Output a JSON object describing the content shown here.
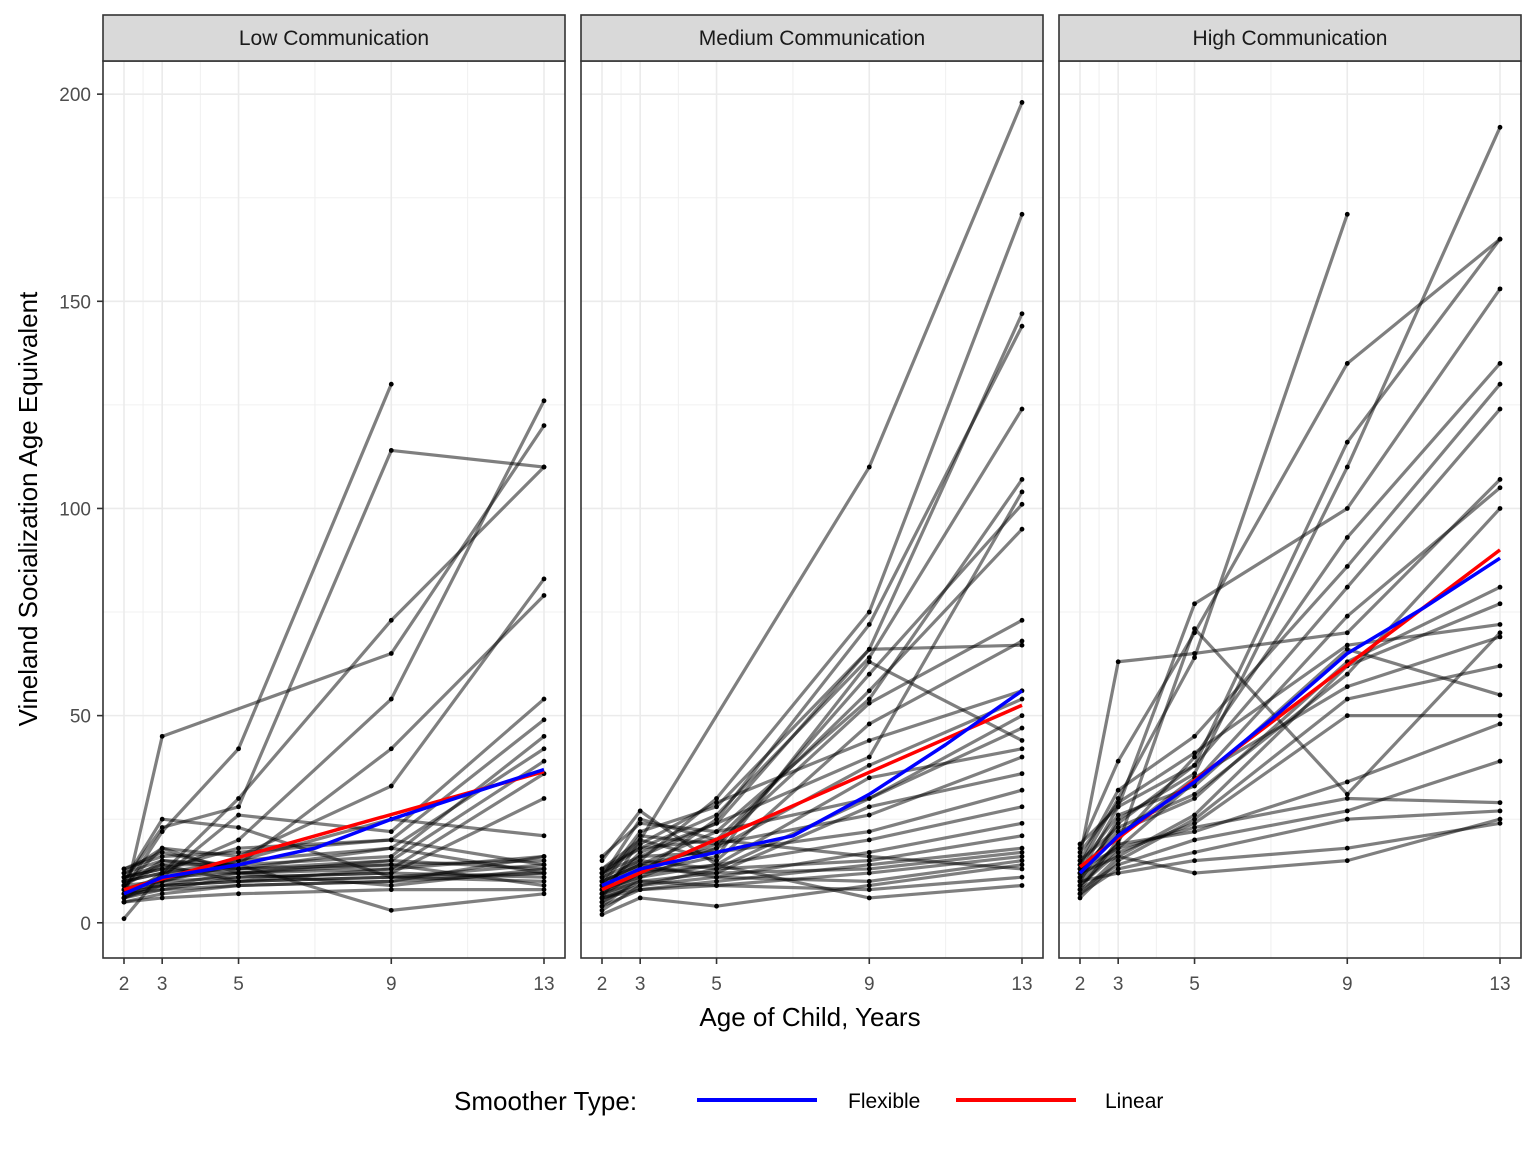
{
  "chart_data": {
    "type": "line",
    "ylabel": "Vineland Socialization Age Equivalent",
    "xlabel": "Age of Child, Years",
    "x_ticks": [
      2,
      3,
      5,
      9,
      13
    ],
    "y_ticks": [
      0,
      50,
      100,
      150,
      200
    ],
    "xlim": [
      1.45,
      13.55
    ],
    "ylim": [
      -8.5,
      208
    ],
    "grid": true,
    "legend": {
      "title": "Smoother Type:",
      "placement": "bottom",
      "items": [
        {
          "label": "Flexible",
          "color": "#0000ff"
        },
        {
          "label": "Linear",
          "color": "#ff0000"
        }
      ]
    },
    "colors": {
      "individual": "#000000",
      "flexible": "#0000ff",
      "linear": "#ff0000",
      "strip_bg": "#d9d9d9"
    },
    "panels": [
      {
        "title": "Low Communication",
        "flexible": {
          "x": [
            2,
            3,
            5,
            7,
            9,
            11,
            13
          ],
          "y": [
            7,
            11,
            14,
            18,
            25,
            31,
            37
          ]
        },
        "linear": {
          "x": [
            2,
            13
          ],
          "y": [
            8,
            36.5
          ]
        },
        "subjects": [
          [
            1,
            12,
            30,
            73,
            110
          ],
          [
            5,
            45,
            null,
            65,
            120
          ],
          [
            8,
            22,
            42,
            130,
            null
          ],
          [
            10,
            23,
            28,
            114,
            110
          ],
          [
            6,
            12,
            20,
            54,
            126
          ],
          [
            9,
            15,
            14,
            42,
            79
          ],
          [
            12,
            18,
            16,
            33,
            83
          ],
          [
            7,
            11,
            26,
            22,
            54
          ],
          [
            11,
            13,
            18,
            20,
            49
          ],
          [
            8,
            10,
            14,
            16,
            45
          ],
          [
            13,
            17,
            13,
            18,
            42
          ],
          [
            6,
            9,
            12,
            15,
            39
          ],
          [
            9,
            14,
            10,
            13,
            36
          ],
          [
            7,
            8,
            11,
            12,
            30
          ],
          [
            10,
            12,
            15,
            25,
            21
          ],
          [
            5,
            7,
            9,
            10,
            16
          ],
          [
            11,
            13,
            12,
            14,
            15
          ],
          [
            8,
            9,
            10,
            11,
            14
          ],
          [
            12,
            15,
            13,
            15,
            13
          ],
          [
            6,
            8,
            9,
            10,
            12
          ],
          [
            9,
            10,
            11,
            12,
            11
          ],
          [
            7,
            9,
            10,
            11,
            10
          ],
          [
            10,
            12,
            13,
            14,
            9
          ],
          [
            5,
            6,
            7,
            8,
            8
          ],
          [
            11,
            14,
            14,
            3,
            7
          ],
          [
            8,
            11,
            12,
            9,
            13
          ],
          [
            13,
            16,
            17,
            20,
            14
          ],
          [
            6,
            10,
            15,
            18,
            12
          ],
          [
            9,
            18,
            12,
            13,
            16
          ],
          [
            10,
            25,
            23,
            11,
            12
          ]
        ]
      },
      {
        "title": "Medium Communication",
        "flexible": {
          "x": [
            2,
            3,
            5,
            7,
            9,
            11,
            13
          ],
          "y": [
            9,
            13,
            17,
            21,
            31,
            43,
            56
          ]
        },
        "linear": {
          "x": [
            2,
            13
          ],
          "y": [
            8,
            52.5
          ]
        },
        "subjects": [
          [
            6,
            20,
            null,
            110,
            198
          ],
          [
            8,
            15,
            30,
            75,
            171
          ],
          [
            10,
            22,
            28,
            66,
            147
          ],
          [
            5,
            12,
            25,
            72,
            144
          ],
          [
            12,
            18,
            26,
            64,
            124
          ],
          [
            7,
            14,
            22,
            54,
            107
          ],
          [
            9,
            16,
            24,
            40,
            104
          ],
          [
            4,
            11,
            18,
            60,
            101
          ],
          [
            11,
            25,
            20,
            56,
            95
          ],
          [
            6,
            13,
            19,
            53,
            73
          ],
          [
            13,
            20,
            15,
            48,
            68
          ],
          [
            8,
            17,
            24,
            66,
            67
          ],
          [
            10,
            14,
            18,
            38,
            54
          ],
          [
            3,
            9,
            13,
            30,
            50
          ],
          [
            7,
            12,
            16,
            63,
            44
          ],
          [
            15,
            27,
            14,
            35,
            42
          ],
          [
            9,
            21,
            19,
            26,
            40
          ],
          [
            5,
            10,
            12,
            28,
            36
          ],
          [
            12,
            16,
            17,
            22,
            32
          ],
          [
            8,
            11,
            14,
            20,
            28
          ],
          [
            6,
            9,
            11,
            17,
            24
          ],
          [
            11,
            15,
            13,
            15,
            21
          ],
          [
            4,
            8,
            10,
            14,
            18
          ],
          [
            9,
            13,
            12,
            13,
            17
          ],
          [
            7,
            10,
            9,
            12,
            16
          ],
          [
            10,
            14,
            11,
            10,
            15
          ],
          [
            2,
            6,
            4,
            9,
            14
          ],
          [
            13,
            18,
            20,
            16,
            13
          ],
          [
            6,
            8,
            9,
            8,
            11
          ],
          [
            8,
            12,
            14,
            6,
            9
          ],
          [
            16,
            24,
            22,
            30,
            47
          ],
          [
            12,
            19,
            29,
            44,
            56
          ]
        ]
      },
      {
        "title": "High Communication",
        "flexible": {
          "x": [
            2,
            3,
            5,
            7,
            9,
            11,
            13
          ],
          "y": [
            12,
            21,
            34,
            49,
            65,
            76,
            88
          ]
        },
        "linear": {
          "x": [
            2,
            13
          ],
          "y": [
            13.5,
            90
          ]
        },
        "subjects": [
          [
            14,
            30,
            64,
            171,
            null
          ],
          [
            10,
            25,
            36,
            110,
            192
          ],
          [
            18,
            39,
            70,
            135,
            165
          ],
          [
            12,
            28,
            77,
            100,
            153
          ],
          [
            8,
            20,
            40,
            93,
            135
          ],
          [
            15,
            32,
            45,
            86,
            130
          ],
          [
            11,
            24,
            38,
            81,
            124
          ],
          [
            16,
            63,
            65,
            70,
            107
          ],
          [
            9,
            18,
            34,
            74,
            105
          ],
          [
            13,
            22,
            30,
            63,
            81
          ],
          [
            7,
            16,
            26,
            62,
            77
          ],
          [
            17,
            29,
            41,
            67,
            72
          ],
          [
            10,
            19,
            71,
            31,
            70
          ],
          [
            12,
            21,
            35,
            57,
            69
          ],
          [
            6,
            15,
            25,
            54,
            62
          ],
          [
            14,
            26,
            33,
            66,
            55
          ],
          [
            9,
            17,
            24,
            50,
            50
          ],
          [
            11,
            19,
            22,
            34,
            48
          ],
          [
            8,
            14,
            20,
            27,
            39
          ],
          [
            13,
            18,
            23,
            30,
            29
          ],
          [
            7,
            13,
            17,
            25,
            27
          ],
          [
            10,
            12,
            15,
            18,
            24
          ],
          [
            12,
            16,
            12,
            15,
            25
          ],
          [
            19,
            28,
            38,
            116,
            165
          ],
          [
            15,
            23,
            31,
            60,
            100
          ]
        ]
      }
    ]
  }
}
